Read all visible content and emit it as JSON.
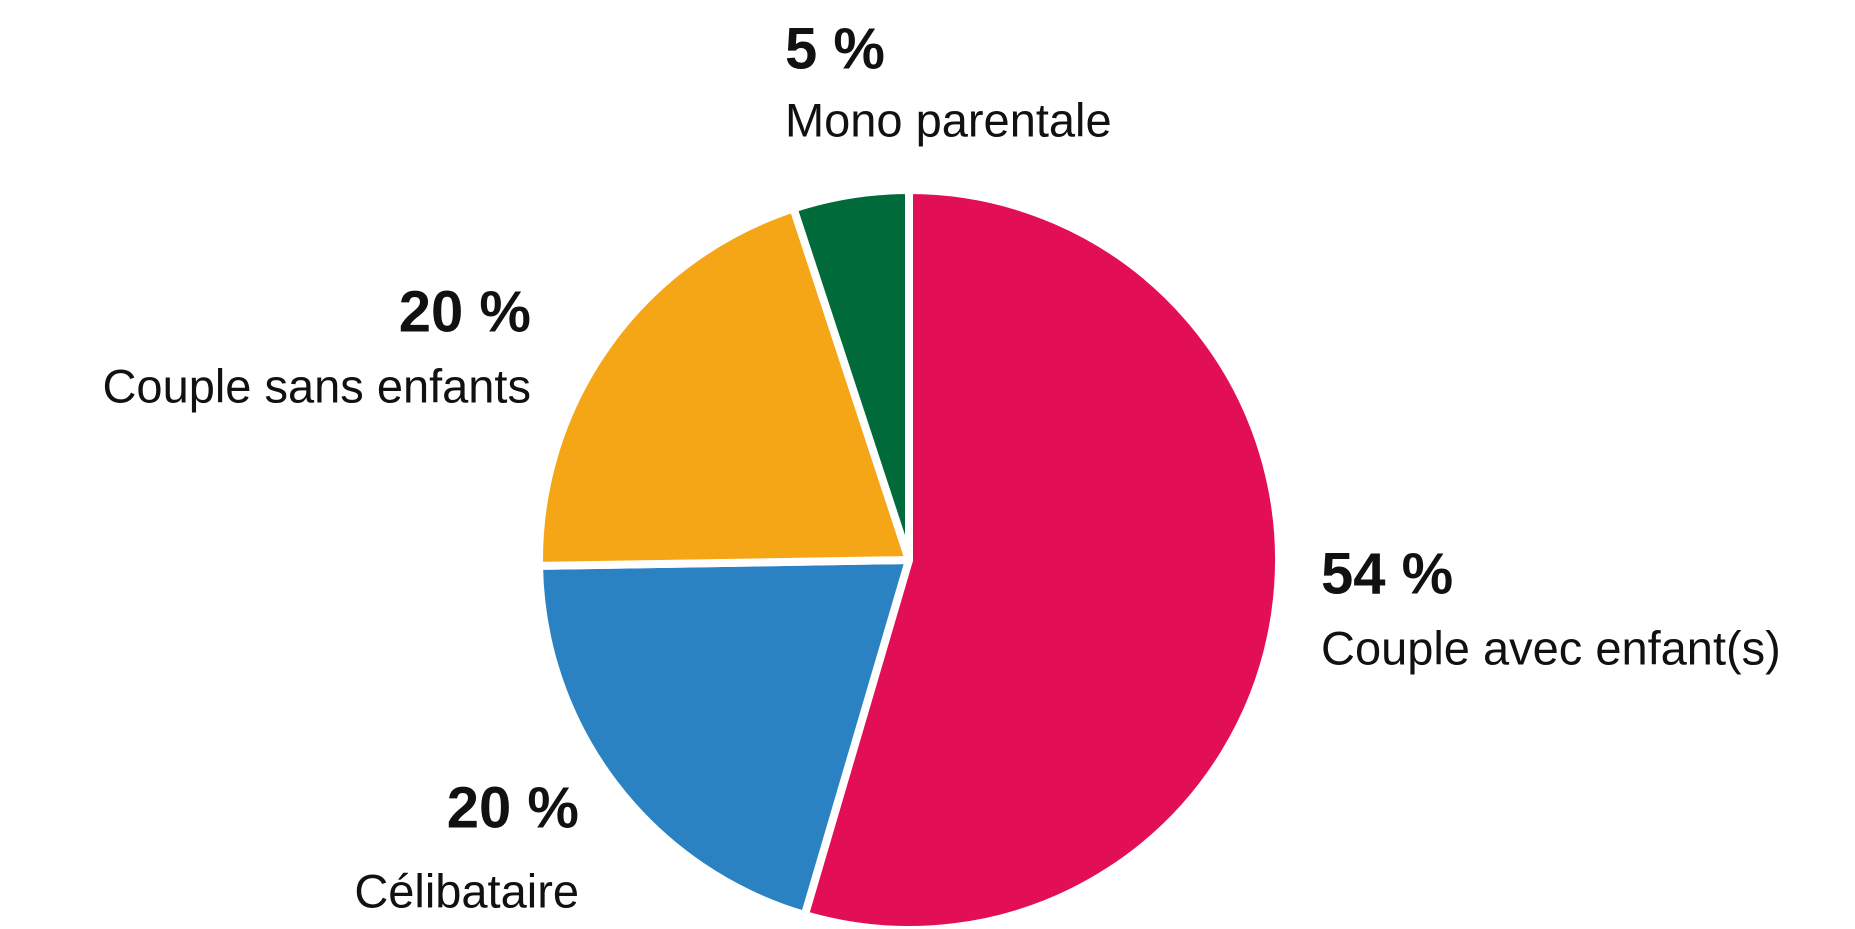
{
  "chart_data": {
    "type": "pie",
    "categories": [
      "Couple avec enfant(s)",
      "Célibataire",
      "Couple sans enfants",
      "Mono parentale"
    ],
    "values": [
      54,
      20,
      20,
      5
    ],
    "value_labels": [
      "54 %",
      "20 %",
      "20 %",
      "5 %"
    ],
    "colors": [
      "#e20f56",
      "#2a82c2",
      "#f4a616",
      "#006a3a"
    ]
  }
}
